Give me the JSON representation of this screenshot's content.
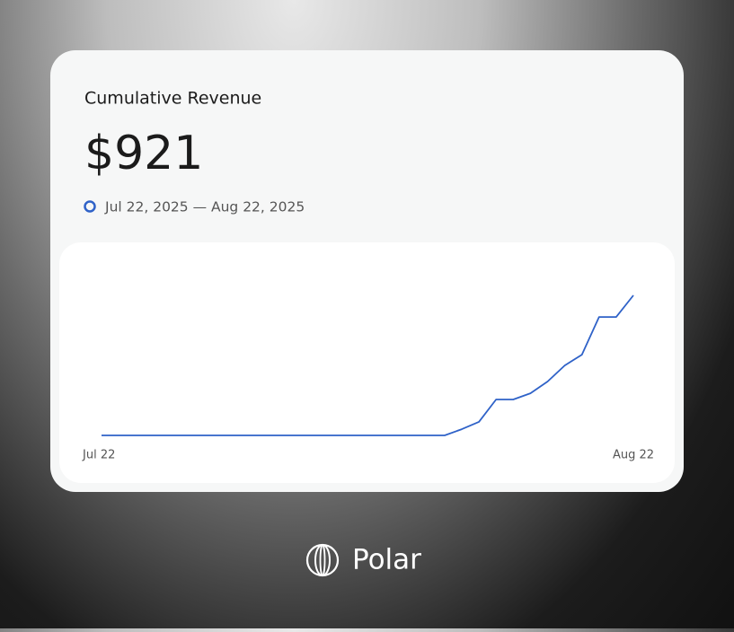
{
  "chart_data": {
    "type": "line",
    "title": "Cumulative Revenue",
    "headline": "$921",
    "date_range": "Jul 22, 2025 — Aug 22, 2025",
    "categories": [
      "Jul 22",
      null,
      null,
      null,
      null,
      null,
      null,
      null,
      null,
      null,
      null,
      null,
      null,
      null,
      null,
      null,
      null,
      null,
      null,
      null,
      null,
      null,
      null,
      null,
      null,
      null,
      null,
      null,
      null,
      null,
      null,
      "Aug 22"
    ],
    "series": [
      {
        "name": "Cumulative Revenue",
        "color": "#2f62c8",
        "values": [
          0,
          0,
          0,
          0,
          0,
          0,
          0,
          0,
          0,
          0,
          0,
          0,
          0,
          0,
          0,
          0,
          0,
          0,
          0,
          0,
          0,
          41,
          89,
          236,
          236,
          277,
          354,
          460,
          531,
          779,
          779,
          921
        ]
      }
    ],
    "brand": "Polar"
  }
}
